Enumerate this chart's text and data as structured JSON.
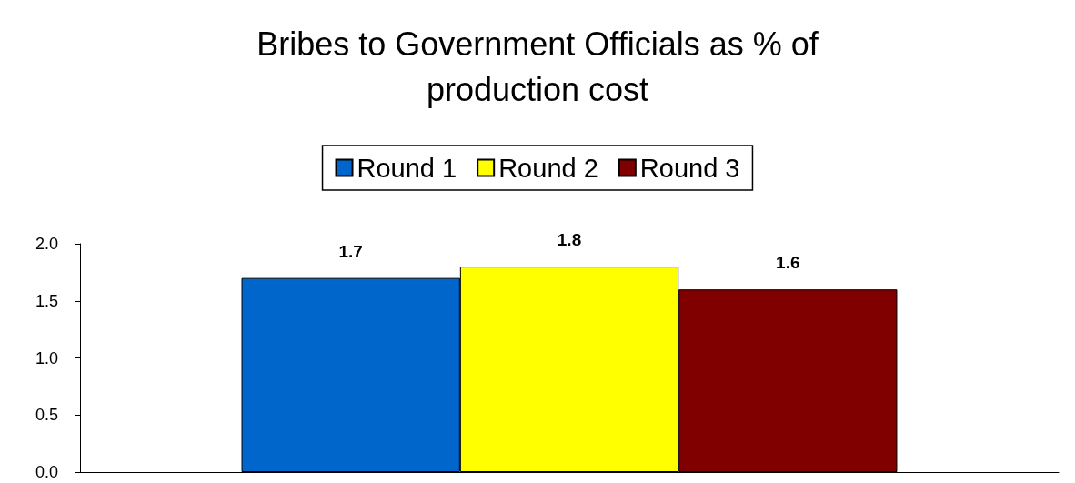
{
  "chart_data": {
    "type": "bar",
    "title": "Bribes to Government Officials as % of\nproduction cost",
    "categories": [
      null
    ],
    "series": [
      {
        "name": "Round 1",
        "color": "#0066cc",
        "values": [
          1.7
        ]
      },
      {
        "name": "Round 2",
        "color": "#ffff00",
        "values": [
          1.8
        ]
      },
      {
        "name": "Round 3",
        "color": "#800000",
        "values": [
          1.6
        ]
      }
    ],
    "ylim": [
      0,
      2
    ],
    "yticks": [
      {
        "value": 0,
        "label": "0.0"
      },
      {
        "value": 0.5,
        "label": "0.5"
      },
      {
        "value": 1,
        "label": "1.0"
      },
      {
        "value": 1.5,
        "label": "1.5"
      },
      {
        "value": 2,
        "label": "2.0"
      }
    ],
    "grid": false,
    "legend": "top",
    "data_labels": true
  }
}
